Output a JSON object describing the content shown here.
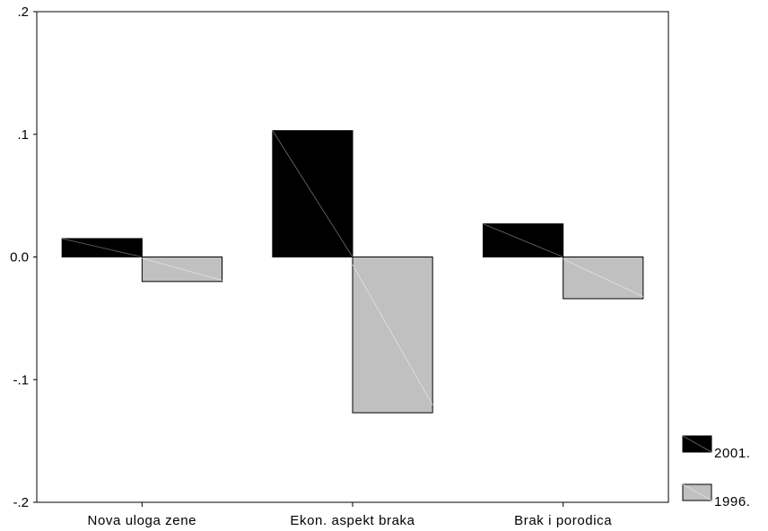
{
  "chart_data": {
    "type": "bar",
    "categories": [
      "Nova uloga zene",
      "Ekon. aspekt braka",
      "Brak i porodica"
    ],
    "series": [
      {
        "name": "2001.",
        "values": [
          0.015,
          0.103,
          0.027
        ],
        "color": "#000000"
      },
      {
        "name": "1996.",
        "values": [
          -0.02,
          -0.127,
          -0.034
        ],
        "color": "#c0c0c0"
      }
    ],
    "yticks": [
      {
        "value": 0.2,
        "label": ".2"
      },
      {
        "value": 0.1,
        "label": ".1"
      },
      {
        "value": 0.0,
        "label": "0.0"
      },
      {
        "value": -0.1,
        "label": "-.1"
      },
      {
        "value": -0.2,
        "label": "-.2"
      }
    ],
    "ylim": [
      -0.2,
      0.2
    ],
    "title": "",
    "xlabel": "",
    "ylabel": "",
    "grid": false,
    "legend_position": "bottom-right, outside plot"
  }
}
